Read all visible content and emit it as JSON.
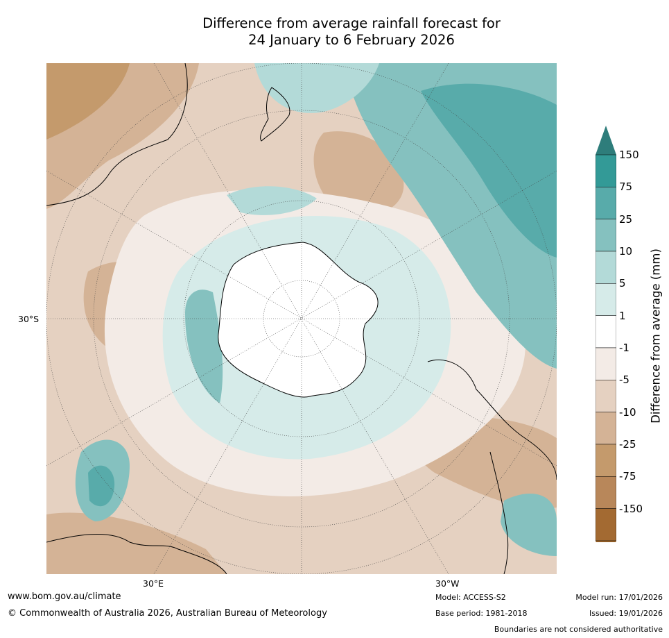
{
  "title": {
    "line1": "Difference from average rainfall forecast for",
    "line2": "24 January to 6 February 2026"
  },
  "map": {
    "projection": "south polar stereographic",
    "lat_label": "30°S",
    "lon_labels": [
      "30°E",
      "30°W"
    ]
  },
  "colorbar": {
    "label": "Difference from average (mm)",
    "ticks": [
      "150",
      "75",
      "25",
      "10",
      "5",
      "1",
      "-1",
      "-5",
      "-10",
      "-25",
      "-75",
      "-150"
    ],
    "colors": [
      "#2e7d7b",
      "#339a97",
      "#58abaa",
      "#85c1bf",
      "#b3dad8",
      "#d6ebe9",
      "#ffffff",
      "#f3ebe6",
      "#e5d1c1",
      "#d4b396",
      "#c49a6c",
      "#b8875a",
      "#a36a32",
      "#8e5a24"
    ]
  },
  "footer": {
    "website": "www.bom.gov.au/climate",
    "copyright": "© Commonwealth of Australia 2026, Australian Bureau of Meteorology",
    "model": "Model: ACCESS-S2",
    "base_period": "Base period: 1981-2018",
    "model_run": "Model run: 17/01/2026",
    "issued": "Issued: 19/01/2026",
    "disclaimer": "Boundaries are not considered authoritative"
  }
}
